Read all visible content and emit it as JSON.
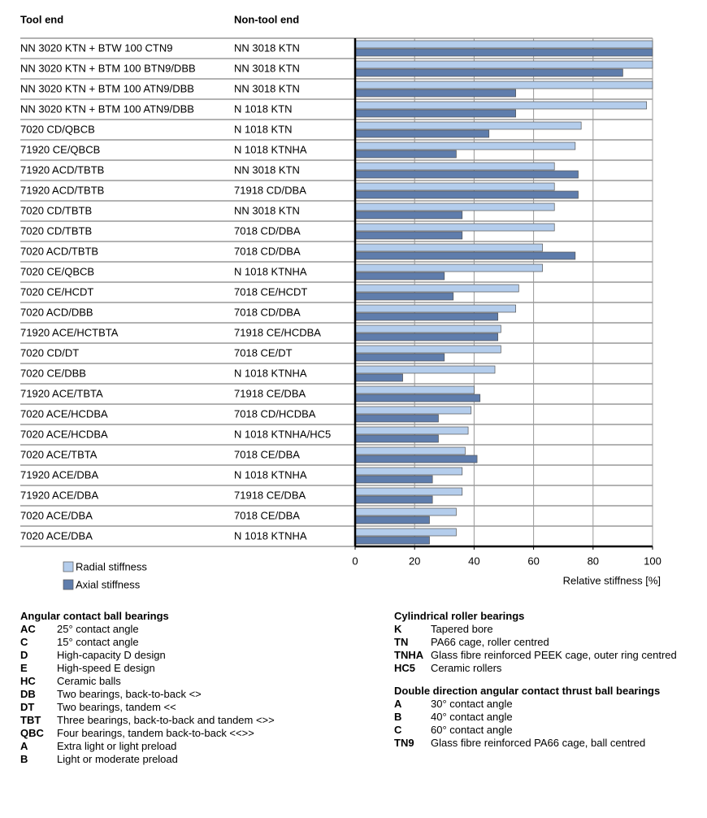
{
  "chart_data": {
    "type": "bar",
    "orientation": "horizontal",
    "column_headers": [
      "Tool end",
      "Non-tool end"
    ],
    "categories": [
      [
        "NN 3020 KTN + BTW 100 CTN9",
        "NN 3018 KTN"
      ],
      [
        "NN 3020 KTN + BTM 100 BTN9/DBB",
        "NN 3018 KTN"
      ],
      [
        "NN 3020 KTN + BTM 100 ATN9/DBB",
        "NN 3018 KTN"
      ],
      [
        "NN 3020 KTN + BTM 100 ATN9/DBB",
        "N 1018 KTN"
      ],
      [
        "7020 CD/QBCB",
        "N 1018 KTN"
      ],
      [
        "71920 CE/QBCB",
        "N 1018 KTNHA"
      ],
      [
        "71920 ACD/TBTB",
        "NN 3018 KTN"
      ],
      [
        "71920 ACD/TBTB",
        "71918 CD/DBA"
      ],
      [
        "7020 CD/TBTB",
        "NN 3018 KTN"
      ],
      [
        "7020 CD/TBTB",
        "7018 CD/DBA"
      ],
      [
        "7020 ACD/TBTB",
        "7018 CD/DBA"
      ],
      [
        "7020 CE/QBCB",
        "N 1018 KTNHA"
      ],
      [
        "7020 CE/HCDT",
        "7018 CE/HCDT"
      ],
      [
        "7020 ACD/DBB",
        "7018 CD/DBA"
      ],
      [
        "71920 ACE/HCTBTA",
        "71918 CE/HCDBA"
      ],
      [
        "7020 CD/DT",
        "7018 CE/DT"
      ],
      [
        "7020 CE/DBB",
        "N 1018 KTNHA"
      ],
      [
        "71920 ACE/TBTA",
        "71918 CE/DBA"
      ],
      [
        "7020 ACE/HCDBA",
        "7018 CD/HCDBA"
      ],
      [
        "7020 ACE/HCDBA",
        "N 1018 KTNHA/HC5"
      ],
      [
        "7020 ACE/TBTA",
        "7018 CE/DBA"
      ],
      [
        "71920 ACE/DBA",
        "N 1018 KTNHA"
      ],
      [
        "71920 ACE/DBA",
        "71918 CE/DBA"
      ],
      [
        "7020 ACE/DBA",
        "7018 CE/DBA"
      ],
      [
        "7020 ACE/DBA",
        "N 1018 KTNHA"
      ]
    ],
    "series": [
      {
        "name": "Radial stiffness",
        "color": "#b4cdec",
        "values": [
          100,
          100,
          100,
          98,
          76,
          74,
          67,
          67,
          67,
          67,
          63,
          63,
          55,
          54,
          49,
          49,
          47,
          40,
          39,
          38,
          37,
          36,
          36,
          34,
          34
        ]
      },
      {
        "name": "Axial stiffness",
        "color": "#5f7dac",
        "values": [
          100,
          90,
          54,
          54,
          45,
          34,
          75,
          75,
          36,
          36,
          74,
          30,
          33,
          48,
          48,
          30,
          16,
          42,
          28,
          28,
          41,
          26,
          26,
          25,
          25
        ]
      }
    ],
    "xlim": [
      0,
      100
    ],
    "xticks": [
      0,
      20,
      40,
      60,
      80,
      100
    ],
    "xlabel": "Relative stiffness [%]",
    "grid": true
  },
  "notes": [
    {
      "title": "Angular contact ball bearings",
      "items": [
        [
          "AC",
          "25° contact angle"
        ],
        [
          "C",
          "15° contact angle"
        ],
        [
          "D",
          "High-capacity D design"
        ],
        [
          "E",
          "High-speed E design"
        ],
        [
          "HC",
          "Ceramic balls"
        ],
        [
          "DB",
          "Two bearings, back-to-back <>"
        ],
        [
          "DT",
          "Two bearings, tandem <<"
        ],
        [
          "TBT",
          "Three bearings, back-to-back and tandem <>>"
        ],
        [
          "QBC",
          "Four bearings, tandem back-to-back <<>>"
        ],
        [
          "A",
          "Extra light or light preload"
        ],
        [
          "B",
          "Light or moderate preload"
        ]
      ]
    },
    {
      "title": "Cylindrical roller bearings",
      "items": [
        [
          "K",
          "Tapered bore"
        ],
        [
          "TN",
          "PA66 cage, roller centred"
        ],
        [
          "TNHA",
          "Glass fibre reinforced PEEK cage, outer ring centred"
        ],
        [
          "HC5",
          "Ceramic rollers"
        ]
      ]
    },
    {
      "title": "Double direction angular contact thrust ball bearings",
      "items": [
        [
          "A",
          "30° contact angle"
        ],
        [
          "B",
          "40° contact angle"
        ],
        [
          "C",
          "60° contact angle"
        ],
        [
          "TN9",
          "Glass fibre reinforced PA66 cage, ball centred"
        ]
      ]
    }
  ]
}
